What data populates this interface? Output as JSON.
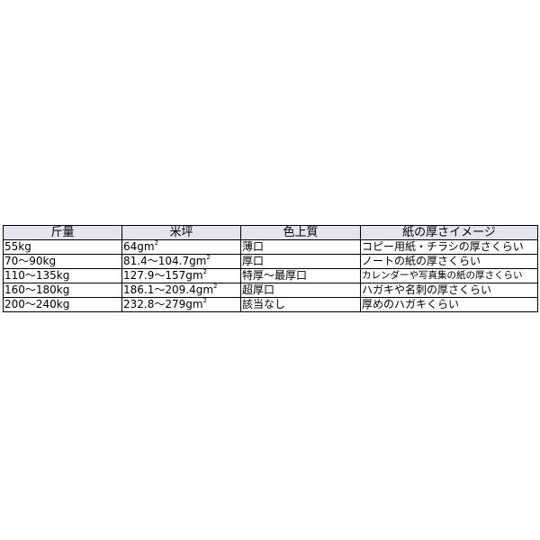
{
  "table": {
    "headers": [
      "斤量",
      "米坪",
      "色上質",
      "紙の厚さイメージ"
    ],
    "rows": [
      {
        "weight": "55kg",
        "basis": "64gm",
        "unit_sup": "2",
        "color_paper": "薄口",
        "image": "コピー用紙・チラシの厚さくらい"
      },
      {
        "weight": "70〜90kg",
        "basis": "81.4〜104.7gm",
        "unit_sup": "2",
        "color_paper": "厚口",
        "image": "ノートの紙の厚さくらい"
      },
      {
        "weight": "110〜135kg",
        "basis": "127.9〜157gm",
        "unit_sup": "2",
        "color_paper": "特厚〜最厚口",
        "image": "カレンダーや写真集の紙の厚さくらい"
      },
      {
        "weight": "160〜180kg",
        "basis": "186.1〜209.4gm",
        "unit_sup": "2",
        "color_paper": "超厚口",
        "image": "ハガキや名刺の厚さくらい"
      },
      {
        "weight": "200〜240kg",
        "basis": "232.8〜279gm",
        "unit_sup": "2",
        "color_paper": "該当なし",
        "image": "厚めのハガキくらい"
      }
    ],
    "colors": {
      "header_bg": "#e4e4f0",
      "border": "#000000"
    }
  }
}
